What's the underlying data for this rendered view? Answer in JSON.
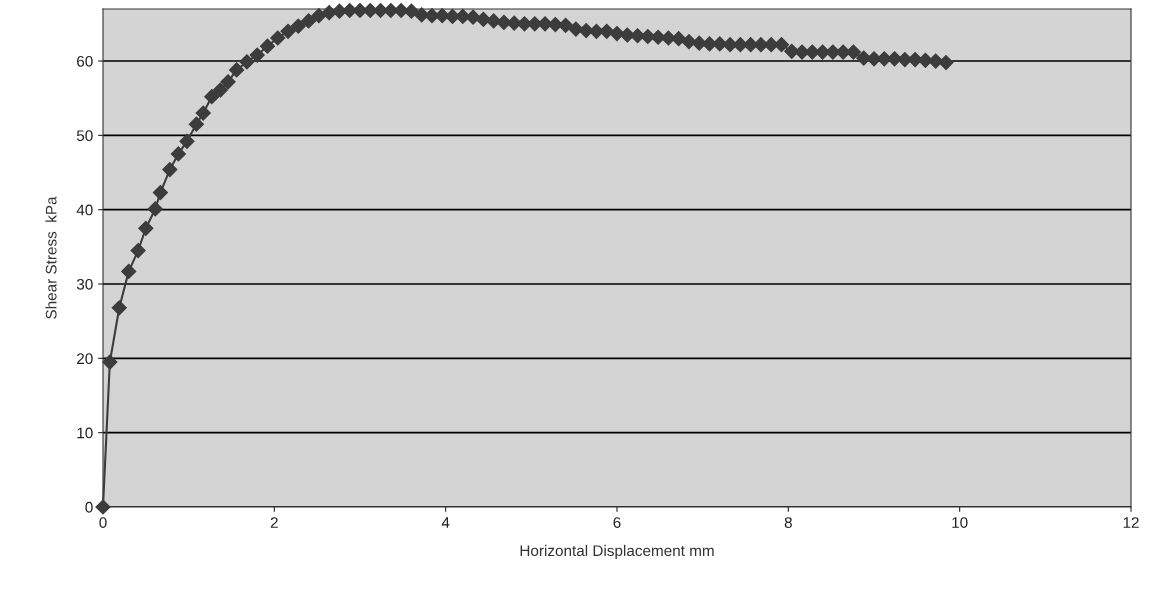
{
  "chart_data": {
    "type": "line",
    "xlabel": "Horizontal Displacement mm",
    "ylabel": "Shear Stress  kPa",
    "xlim": [
      0,
      12
    ],
    "xticks": [
      0,
      2,
      4,
      6,
      8,
      10,
      12
    ],
    "ylim": [
      0,
      67
    ],
    "yticks": [
      0,
      10,
      20,
      30,
      40,
      50,
      60
    ],
    "grid": "y",
    "marker": "diamond",
    "line_style": "solid",
    "legend": false,
    "series": [
      {
        "color": "#3c3c3c",
        "x": [
          0,
          0.08,
          0.19,
          0.3,
          0.41,
          0.5,
          0.61,
          0.67,
          0.78,
          0.88,
          0.98,
          1.09,
          1.17,
          1.27,
          1.37,
          1.46,
          1.56,
          1.68,
          1.8,
          1.92,
          2.04,
          2.16,
          2.28,
          2.4,
          2.52,
          2.64,
          2.76,
          2.88,
          3.0,
          3.12,
          3.24,
          3.36,
          3.48,
          3.6,
          3.72,
          3.84,
          3.96,
          4.08,
          4.2,
          4.32,
          4.44,
          4.56,
          4.68,
          4.8,
          4.92,
          5.04,
          5.16,
          5.28,
          5.4,
          5.52,
          5.64,
          5.76,
          5.88,
          6.0,
          6.12,
          6.24,
          6.36,
          6.48,
          6.6,
          6.72,
          6.84,
          6.96,
          7.08,
          7.2,
          7.32,
          7.44,
          7.56,
          7.68,
          7.8,
          7.92,
          8.04,
          8.16,
          8.28,
          8.4,
          8.52,
          8.64,
          8.76,
          8.88,
          9.0,
          9.12,
          9.24,
          9.36,
          9.48,
          9.6,
          9.72,
          9.84
        ],
        "values": [
          0,
          19.5,
          26.8,
          31.7,
          34.5,
          37.5,
          40.1,
          42.3,
          45.4,
          47.5,
          49.2,
          51.5,
          53.0,
          55.2,
          56.1,
          57.2,
          58.8,
          59.9,
          60.8,
          62.0,
          63.1,
          64.0,
          64.7,
          65.4,
          66.1,
          66.5,
          66.7,
          66.8,
          66.8,
          66.8,
          66.8,
          66.8,
          66.8,
          66.7,
          66.2,
          66.1,
          66.1,
          66.0,
          66.0,
          65.9,
          65.6,
          65.4,
          65.2,
          65.1,
          65.0,
          65.0,
          65.0,
          64.9,
          64.8,
          64.3,
          64.1,
          64.0,
          64.0,
          63.7,
          63.5,
          63.4,
          63.3,
          63.2,
          63.1,
          63.0,
          62.6,
          62.4,
          62.3,
          62.3,
          62.2,
          62.2,
          62.2,
          62.2,
          62.2,
          62.2,
          61.3,
          61.2,
          61.2,
          61.2,
          61.2,
          61.2,
          61.2,
          60.4,
          60.3,
          60.3,
          60.3,
          60.2,
          60.2,
          60.1,
          60.0,
          59.8
        ]
      }
    ]
  }
}
